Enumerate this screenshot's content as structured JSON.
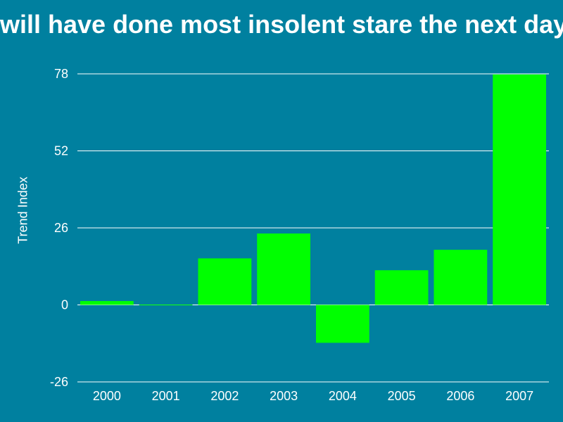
{
  "chart_data": {
    "type": "bar",
    "title": "will have done most insolent stare the next day p",
    "xlabel": "",
    "ylabel": "Trend Index",
    "categories": [
      "2000",
      "2001",
      "2002",
      "2003",
      "2004",
      "2005",
      "2006",
      "2007"
    ],
    "values": [
      1.3,
      0.1,
      15.7,
      24.1,
      -12.8,
      11.7,
      18.6,
      77.8
    ],
    "ylim": [
      -26,
      78
    ],
    "yticks": [
      -26,
      0,
      26,
      52,
      78
    ],
    "grid": true,
    "legend": "none",
    "colors": {
      "background": "#00809f",
      "bar": "#00ff00",
      "text": "#ffffff",
      "grid": "#ffffff"
    }
  }
}
